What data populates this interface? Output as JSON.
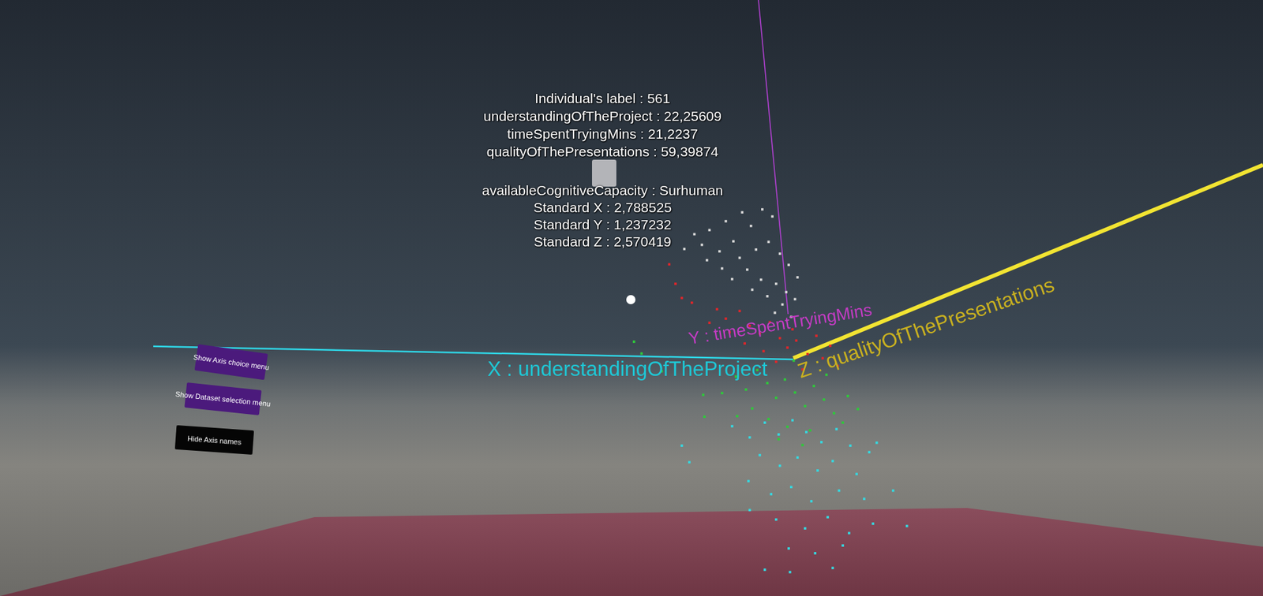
{
  "chart_data": {
    "type": "scatter",
    "marker": "square",
    "grid": false,
    "tick_labels": false,
    "xlim": [
      0,
      100
    ],
    "ylim": [
      0,
      100
    ],
    "series": [
      {
        "color": "#35d8e0",
        "x": [
          54.0,
          54.6,
          58.0,
          59.4,
          60.6,
          61.7,
          62.8,
          63.9,
          65.1,
          66.3,
          67.4,
          68.9,
          69.5,
          60.2,
          61.8,
          63.2,
          64.8,
          66.0,
          67.9,
          59.3,
          61.1,
          62.7,
          64.3,
          66.5,
          68.5,
          70.8,
          59.4,
          61.5,
          63.8,
          65.6,
          67.3,
          69.2,
          71.9,
          62.5,
          64.6,
          66.8,
          60.6,
          66.0,
          62.6
        ],
        "y": [
          25.0,
          22.2,
          28.3,
          26.4,
          28.9,
          26.9,
          29.3,
          27.3,
          25.6,
          27.8,
          25.0,
          23.9,
          25.5,
          23.4,
          21.6,
          23.0,
          20.8,
          22.4,
          20.2,
          19.0,
          16.8,
          18.0,
          15.6,
          17.4,
          16.0,
          17.4,
          14.1,
          12.5,
          11.0,
          12.9,
          10.2,
          11.8,
          11.4,
          7.6,
          6.8,
          8.1,
          4.0,
          4.3,
          3.6
        ]
      },
      {
        "color": "#2ec93a",
        "x": [
          50.2,
          50.8,
          52.4,
          55.7,
          58.3,
          59.1,
          60.0,
          60.8,
          61.5,
          62.2,
          63.0,
          63.8,
          64.5,
          65.3,
          66.1,
          67.2,
          68.0,
          59.6,
          60.9,
          62.4,
          64.2,
          66.8,
          58.4,
          55.8,
          61.7,
          63.6,
          57.2,
          62.9,
          65.5
        ],
        "y": [
          42.6,
          40.6,
          37.6,
          33.6,
          36.7,
          34.5,
          37.8,
          35.6,
          33.1,
          36.2,
          34.0,
          31.7,
          35.1,
          32.8,
          30.5,
          33.4,
          31.2,
          31.3,
          29.5,
          28.2,
          27.6,
          28.9,
          30.0,
          29.9,
          26.1,
          25.1,
          33.9,
          39.4,
          37.0
        ]
      },
      {
        "color": "#e0262a",
        "x": [
          53.0,
          53.5,
          54.0,
          54.8,
          56.8,
          57.5,
          58.6,
          59.4,
          60.2,
          61.0,
          61.8,
          62.4,
          63.1,
          64.0,
          65.2,
          66.4,
          60.5,
          59.0,
          57.8,
          63.6,
          65.8,
          62.8,
          56.2,
          61.5,
          64.7
        ],
        "y": [
          55.7,
          52.4,
          50.0,
          49.2,
          48.1,
          46.5,
          47.8,
          45.3,
          44.0,
          45.9,
          43.2,
          41.6,
          42.8,
          40.5,
          39.8,
          38.5,
          41.0,
          42.3,
          44.2,
          37.9,
          41.9,
          44.7,
          45.8,
          39.2,
          43.6
        ]
      },
      {
        "color": "#d8d8d8",
        "x": [
          55.0,
          56.2,
          57.5,
          58.8,
          59.5,
          60.4,
          61.2,
          58.1,
          57.0,
          56.0,
          58.6,
          59.9,
          60.9,
          61.8,
          62.5,
          59.2,
          60.3,
          61.5,
          62.3,
          58.0,
          57.2,
          60.8,
          62.0,
          63.0,
          61.4,
          59.6,
          54.2,
          55.6,
          63.2,
          62.7
        ],
        "y": [
          60.8,
          61.5,
          63.0,
          64.5,
          62.2,
          65.0,
          63.8,
          59.6,
          57.9,
          56.4,
          56.8,
          58.2,
          59.5,
          57.5,
          55.6,
          54.8,
          53.1,
          52.4,
          51.0,
          53.2,
          55.0,
          50.3,
          48.9,
          49.8,
          47.5,
          51.4,
          58.3,
          59.0,
          53.5,
          46.8
        ]
      }
    ]
  },
  "axes3d": [
    {
      "name": "X : understandingOfTheProject",
      "color": "#1ec8d6"
    },
    {
      "name": "Y : timeSpentTryingMins",
      "color": "#c43cc4"
    },
    {
      "name": "Z : qualityOfThePresentations",
      "color": "#c8b020"
    }
  ],
  "tooltip": {
    "lines": [
      "Individual's label : 561",
      "understandingOfTheProject : 22,25609",
      "timeSpentTryingMins : 21,2237",
      "qualityOfThePresentations : 59,39874"
    ],
    "extra_lines": [
      "availableCognitiveCapacity : Surhuman",
      "Standard X : 2,788525",
      "Standard Y : 1,237232",
      "Standard Z : 2,570419"
    ]
  },
  "buttons": [
    "Show Axis choice menu",
    "Show Dataset selection menu",
    "Hide Axis names"
  ]
}
